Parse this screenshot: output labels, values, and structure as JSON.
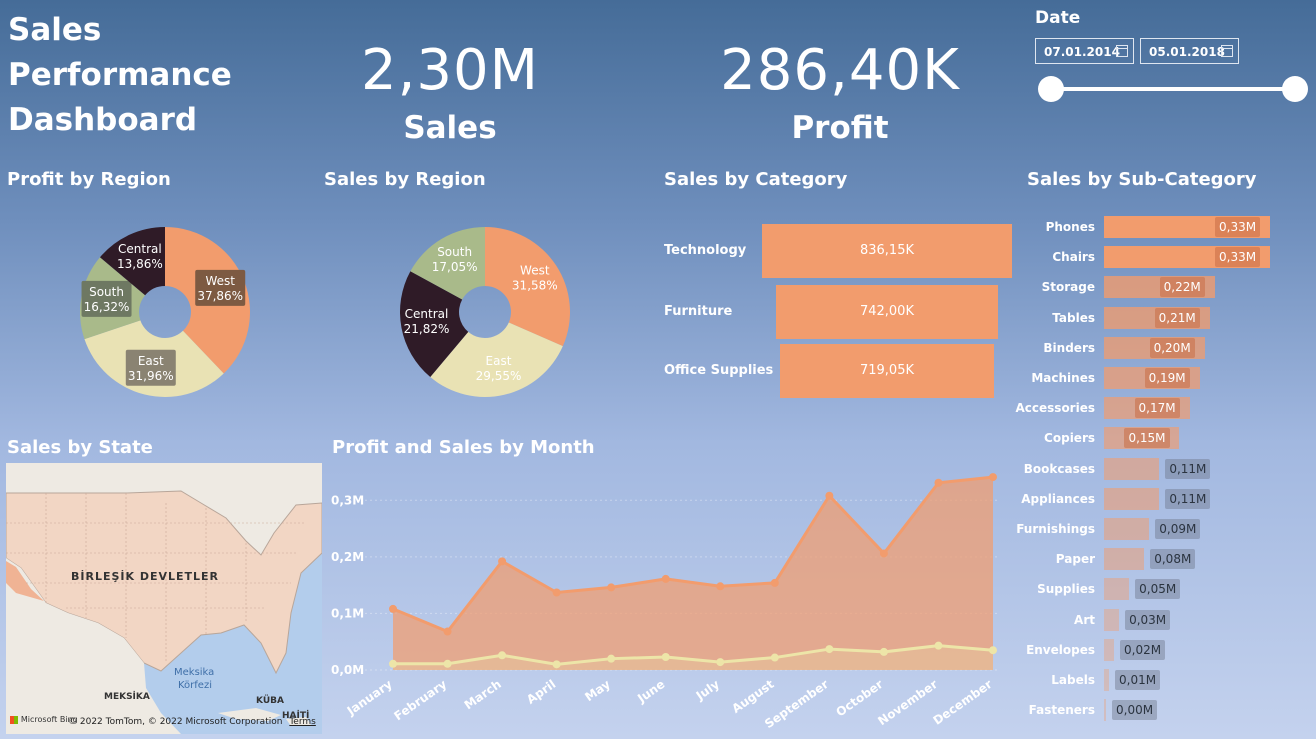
{
  "header": {
    "title": "Sales\nPerformance\nDashboard",
    "kpi_sales_value": "2,30M",
    "kpi_sales_label": "Sales",
    "kpi_profit_value": "286,40K",
    "kpi_profit_label": "Profit"
  },
  "date_filter": {
    "label": "Date",
    "start": "07.01.2014",
    "end": "05.01.2018",
    "slider_start_fraction": 0,
    "slider_end_fraction": 1
  },
  "sections": {
    "profit_by_region": "Profit by Region",
    "sales_by_region": "Sales by Region",
    "sales_by_category": "Sales by Category",
    "sales_by_subcategory": "Sales by Sub-Category",
    "sales_by_state": "Sales by State",
    "profit_sales_month": "Profit and Sales by Month"
  },
  "colors": {
    "west": "#f29c6d",
    "east": "#e9e2b4",
    "south": "#a9ba8a",
    "central": "#2f1b27",
    "sales_line": "#f29c6d",
    "profit_line": "#ede5a8"
  },
  "map": {
    "country_label": "BİRLEŞİK DEVLETLER",
    "gulf_label_1": "Meksika",
    "gulf_label_2": "Körfezi",
    "mexico_label": "MEKSİKA",
    "cuba_label": "KÜBA",
    "haiti_label": "HAİTİ",
    "provider": "Microsoft Bing",
    "copyright": "© 2022 TomTom, © 2022 Microsoft Corporation",
    "terms": "Terms"
  },
  "chart_data": [
    {
      "type": "pie",
      "title": "Profit by Region",
      "slices": [
        {
          "name": "West",
          "value": 37.86,
          "label": "37,86%"
        },
        {
          "name": "East",
          "value": 31.96,
          "label": "31,96%"
        },
        {
          "name": "South",
          "value": 16.32,
          "label": "16,32%"
        },
        {
          "name": "Central",
          "value": 13.86,
          "label": "13,86%"
        }
      ]
    },
    {
      "type": "pie",
      "title": "Sales by Region",
      "slices": [
        {
          "name": "West",
          "value": 31.58,
          "label": "31,58%"
        },
        {
          "name": "East",
          "value": 29.55,
          "label": "29,55%"
        },
        {
          "name": "Central",
          "value": 21.82,
          "label": "21,82%"
        },
        {
          "name": "South",
          "value": 17.05,
          "label": "17,05%"
        }
      ]
    },
    {
      "type": "bar",
      "title": "Sales by Category",
      "categories": [
        "Technology",
        "Furniture",
        "Office Supplies"
      ],
      "values": [
        836.15,
        742.0,
        719.05
      ],
      "labels": [
        "836,15K",
        "742,00K",
        "719,05K"
      ]
    },
    {
      "type": "bar",
      "title": "Sales by Sub-Category",
      "categories": [
        "Phones",
        "Chairs",
        "Storage",
        "Tables",
        "Binders",
        "Machines",
        "Accessories",
        "Copiers",
        "Bookcases",
        "Appliances",
        "Furnishings",
        "Paper",
        "Supplies",
        "Art",
        "Envelopes",
        "Labels",
        "Fasteners"
      ],
      "values": [
        0.33,
        0.33,
        0.22,
        0.21,
        0.2,
        0.19,
        0.17,
        0.15,
        0.11,
        0.11,
        0.09,
        0.08,
        0.05,
        0.03,
        0.02,
        0.01,
        0.0
      ],
      "labels": [
        "0,33M",
        "0,33M",
        "0,22M",
        "0,21M",
        "0,20M",
        "0,19M",
        "0,17M",
        "0,15M",
        "0,11M",
        "0,11M",
        "0,09M",
        "0,08M",
        "0,05M",
        "0,03M",
        "0,02M",
        "0,01M",
        "0,00M"
      ]
    },
    {
      "type": "area",
      "title": "Profit and Sales by Month",
      "categories": [
        "January",
        "February",
        "March",
        "April",
        "May",
        "June",
        "July",
        "August",
        "September",
        "October",
        "November",
        "December"
      ],
      "series": [
        {
          "values": [
            0.108,
            0.068,
            0.192,
            0.137,
            0.146,
            0.161,
            0.148,
            0.154,
            0.308,
            0.206,
            0.331,
            0.341
          ]
        },
        {
          "values": [
            0.011,
            0.011,
            0.026,
            0.01,
            0.02,
            0.023,
            0.014,
            0.022,
            0.037,
            0.032,
            0.043,
            0.035
          ]
        }
      ],
      "yticks": [
        "0,0M",
        "0,1M",
        "0,2M",
        "0,3M"
      ],
      "ylim": [
        0,
        0.35
      ]
    }
  ]
}
